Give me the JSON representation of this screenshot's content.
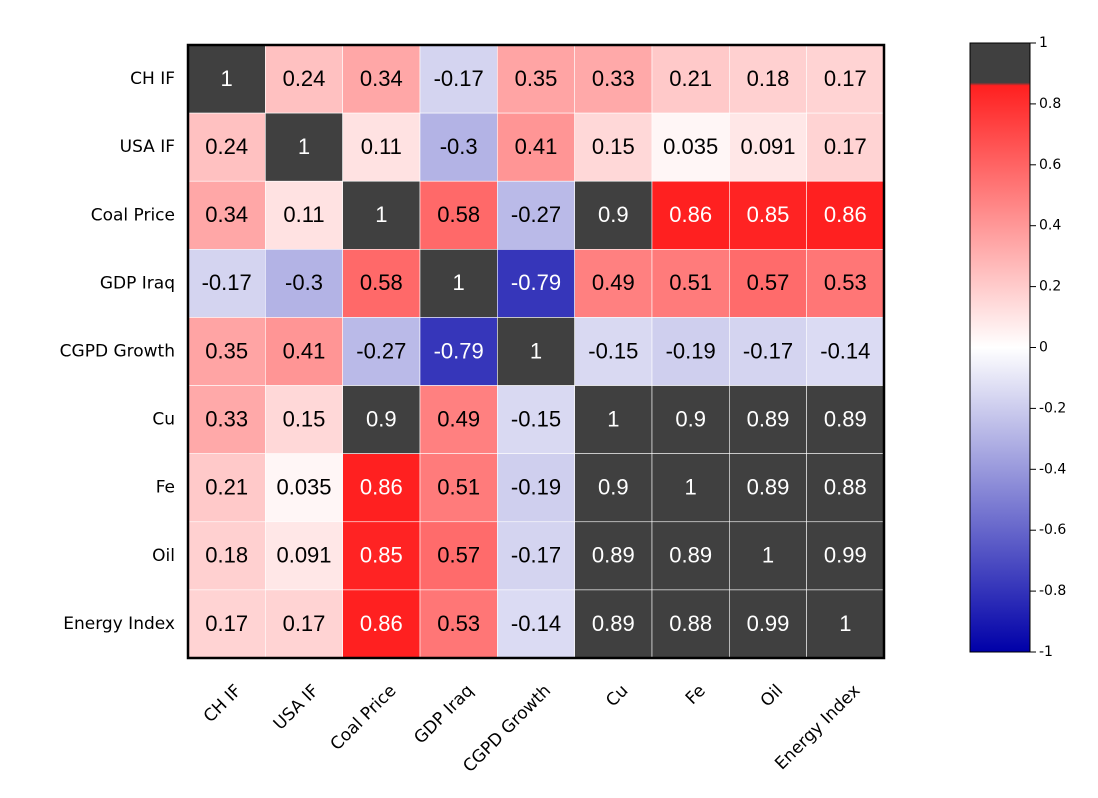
{
  "chart_data": {
    "type": "heatmap",
    "categories": [
      "CH IF",
      "USA IF",
      "Coal Price",
      "GDP Iraq",
      "CGPD Growth",
      "Cu",
      "Fe",
      "Oil",
      "Energy Index"
    ],
    "values": [
      [
        1,
        0.24,
        0.34,
        -0.17,
        0.35,
        0.33,
        0.21,
        0.18,
        0.17
      ],
      [
        0.24,
        1,
        0.11,
        -0.3,
        0.41,
        0.15,
        0.035,
        0.091,
        0.17
      ],
      [
        0.34,
        0.11,
        1,
        0.58,
        -0.27,
        0.9,
        0.86,
        0.85,
        0.86
      ],
      [
        -0.17,
        -0.3,
        0.58,
        1,
        -0.79,
        0.49,
        0.51,
        0.57,
        0.53
      ],
      [
        0.35,
        0.41,
        -0.27,
        -0.79,
        1,
        -0.15,
        -0.19,
        -0.17,
        -0.14
      ],
      [
        0.33,
        0.15,
        0.9,
        0.49,
        -0.15,
        1,
        0.9,
        0.89,
        0.89
      ],
      [
        0.21,
        0.035,
        0.86,
        0.51,
        -0.19,
        0.9,
        1,
        0.89,
        0.88
      ],
      [
        0.18,
        0.091,
        0.85,
        0.57,
        -0.17,
        0.89,
        0.89,
        1,
        0.99
      ],
      [
        0.17,
        0.17,
        0.86,
        0.53,
        -0.14,
        0.89,
        0.88,
        0.99,
        1
      ]
    ],
    "clim": [
      -1,
      1
    ],
    "cticks": [
      1,
      0.8,
      0.6,
      0.4,
      0.2,
      0,
      -0.2,
      -0.4,
      -0.6,
      -0.8,
      -1
    ],
    "colorscale": [
      [
        -1,
        "#0000a8"
      ],
      [
        0,
        "#ffffff"
      ],
      [
        0.86,
        "#ff2020"
      ],
      [
        0.87,
        "#404040"
      ],
      [
        1,
        "#404040"
      ]
    ]
  }
}
